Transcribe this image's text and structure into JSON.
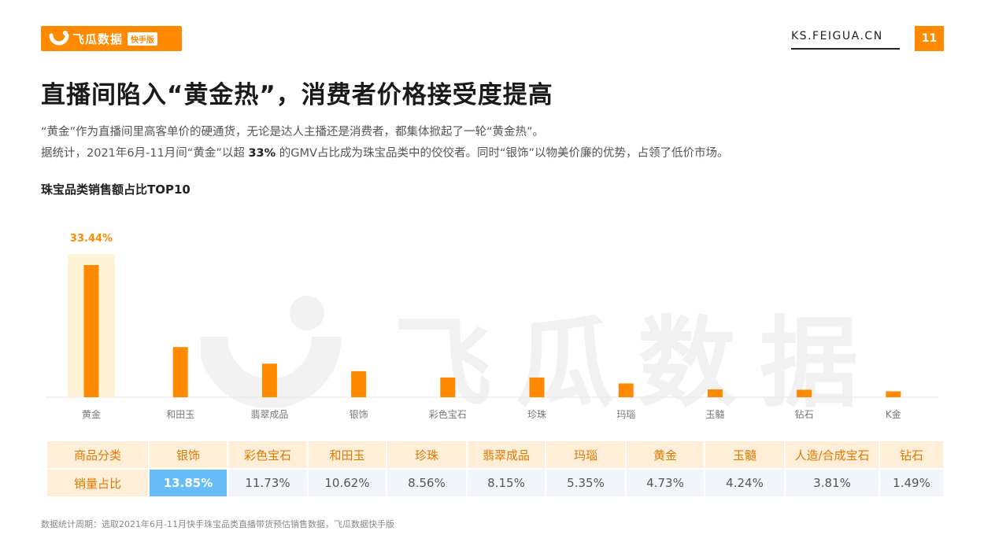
{
  "header": {
    "logo_text": "飞瓜数据",
    "logo_tag": "快手版",
    "site": "KS.FEIGUA.CN",
    "page_number": "11",
    "accent_color": "#ff8a00"
  },
  "title": "直播间陷入“黄金热”，消费者价格接受度提高",
  "description": {
    "line1": "“黄金”作为直播间里高客单价的硬通货，无论是达人主播还是消费者，都集体掀起了一轮“黄金热”。",
    "line2_prefix": "据统计，2021年6月-11月间“黄金”以超 ",
    "line2_bold": "33%",
    "line2_suffix": " 的GMV占比成为珠宝品类中的佼佼者。同时“银饰”以物美价廉的优势，占领了低价市场。"
  },
  "chart_data": {
    "type": "bar",
    "title": "珠宝品类销售额占比TOP10",
    "categories": [
      "黄金",
      "和田玉",
      "翡翠成品",
      "银饰",
      "彩色宝石",
      "珍珠",
      "玛瑙",
      "玉髓",
      "钻石",
      "K金"
    ],
    "values": [
      33.44,
      12.7,
      8.5,
      6.6,
      5.0,
      5.0,
      3.5,
      2.0,
      1.9,
      1.5
    ],
    "highlight_category": "黄金",
    "highlight_label": "33.44%",
    "bar_color": "#ff8a00",
    "highlight_bg": "#fff4d6"
  },
  "table": {
    "header_label": "商品分类",
    "value_label": "销量占比",
    "columns": [
      "银饰",
      "彩色宝石",
      "和田玉",
      "珍珠",
      "翡翠成品",
      "玛瑙",
      "黄金",
      "玉髓",
      "人造/合成宝石",
      "钻石"
    ],
    "values": [
      "13.85%",
      "11.73%",
      "10.62%",
      "8.56%",
      "8.15%",
      "5.35%",
      "4.73%",
      "4.24%",
      "3.81%",
      "1.49%"
    ],
    "highlight_color": "#67bdf7"
  },
  "footnote": "数据统计周期：选取2021年6月-11月快手珠宝品类直播带货预估销售数据，飞瓜数据快手版"
}
